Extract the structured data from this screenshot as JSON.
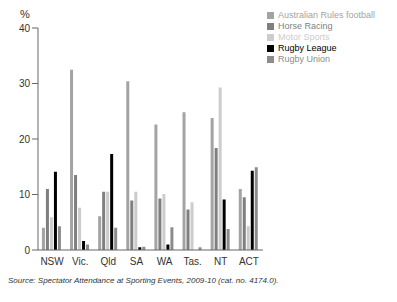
{
  "chart_data": {
    "type": "bar",
    "y_label": "%",
    "source": "Source: Spectator Attendance at Sporting Events, 2009-10 (cat. no. 4174.0).",
    "categories": [
      "NSW",
      "Vic.",
      "Qld",
      "SA",
      "WA",
      "Tas.",
      "NT",
      "ACT"
    ],
    "series": [
      {
        "name": "Australian Rules football",
        "color": "#a3a3a3",
        "values": [
          4.0,
          32.5,
          6.1,
          30.4,
          22.6,
          24.8,
          23.8,
          11.0
        ]
      },
      {
        "name": "Horse Racing",
        "color": "#7f7f7f",
        "values": [
          11.0,
          13.5,
          10.5,
          8.9,
          9.3,
          7.3,
          18.4,
          9.5
        ]
      },
      {
        "name": "Motor Sports",
        "color": "#cccccc",
        "values": [
          5.9,
          7.6,
          10.5,
          10.5,
          10.1,
          8.6,
          29.3,
          4.3
        ]
      },
      {
        "name": "Rugby League",
        "color": "#000000",
        "values": [
          14.1,
          1.6,
          17.3,
          0.5,
          1.0,
          0,
          9.1,
          14.3
        ]
      },
      {
        "name": "Rugby Union",
        "color": "#8c8c8c",
        "values": [
          4.3,
          1.0,
          4.0,
          0.6,
          4.1,
          0.5,
          3.8,
          14.9
        ]
      }
    ],
    "ylim": [
      0,
      40
    ],
    "yticks": [
      0,
      10,
      20,
      30,
      40
    ],
    "grid": false,
    "legend": "upper right"
  }
}
